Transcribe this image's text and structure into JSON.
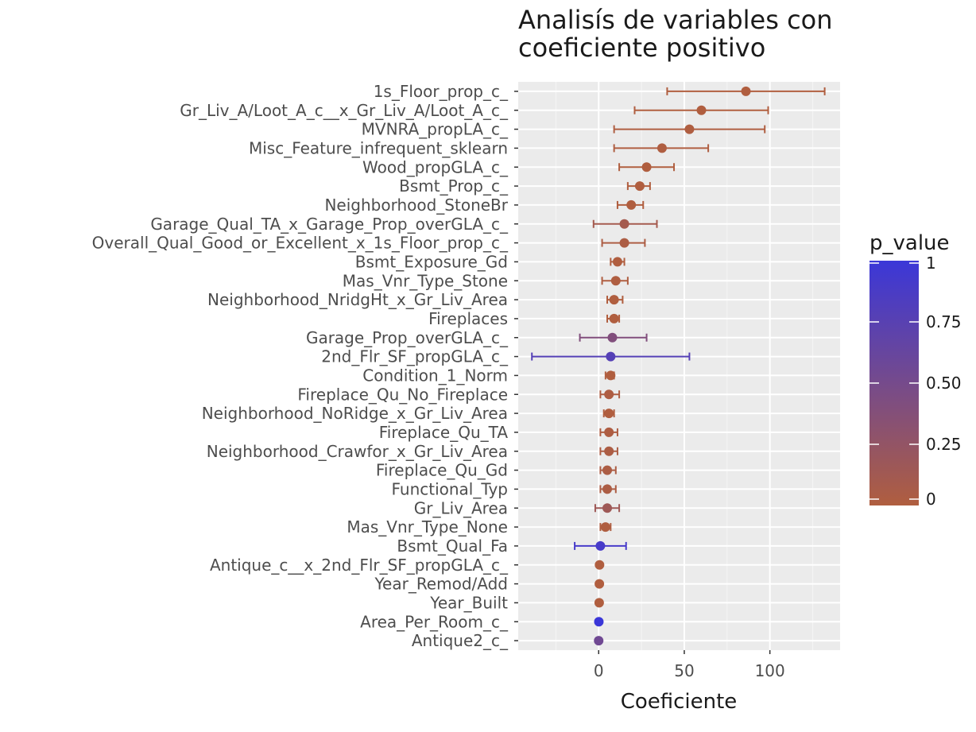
{
  "chart_data": {
    "type": "forest",
    "title": [
      "Analisís de variables con",
      "coeficiente positivo"
    ],
    "xlabel": "Coeficiente",
    "ylabel": "",
    "xlim": [
      -47,
      141
    ],
    "xticks": [
      0,
      50,
      100
    ],
    "grid": true,
    "legend": {
      "title": "p_value",
      "position": "right",
      "range": [
        0,
        1
      ],
      "ticks": [
        0,
        0.25,
        0.5,
        0.75,
        1
      ],
      "tick_labels": [
        "0",
        "0.25",
        "0.50",
        "0.75",
        "1"
      ],
      "low_color": "#b05e3f",
      "high_color": "#3b37d8"
    },
    "points": [
      {
        "label": "1s_Floor_prop_c_",
        "coef": 86,
        "low": 40,
        "high": 132,
        "p_value": 0.0
      },
      {
        "label": "Gr_Liv_A/Loot_A_c__x_Gr_Liv_A/Loot_A_c_",
        "coef": 60,
        "low": 21,
        "high": 99,
        "p_value": 0.0
      },
      {
        "label": "MVNRA_propLA_c_",
        "coef": 53,
        "low": 9,
        "high": 97,
        "p_value": 0.01
      },
      {
        "label": "Misc_Feature_infrequent_sklearn",
        "coef": 37,
        "low": 9,
        "high": 64,
        "p_value": 0.01
      },
      {
        "label": "Wood_propGLA_c_",
        "coef": 28,
        "low": 12,
        "high": 44,
        "p_value": 0.0
      },
      {
        "label": "Bsmt_Prop_c_",
        "coef": 24,
        "low": 17,
        "high": 30,
        "p_value": 0.0
      },
      {
        "label": "Neighborhood_StoneBr",
        "coef": 19,
        "low": 11,
        "high": 26,
        "p_value": 0.0
      },
      {
        "label": "Garage_Qual_TA_x_Garage_Prop_overGLA_c_",
        "coef": 15,
        "low": -3,
        "high": 34,
        "p_value": 0.1
      },
      {
        "label": "Overall_Qual_Good_or_Excellent_x_1s_Floor_prop_c_",
        "coef": 15,
        "low": 2,
        "high": 27,
        "p_value": 0.03
      },
      {
        "label": "Bsmt_Exposure_Gd",
        "coef": 11,
        "low": 7,
        "high": 15,
        "p_value": 0.0
      },
      {
        "label": "Mas_Vnr_Type_Stone",
        "coef": 10,
        "low": 2,
        "high": 17,
        "p_value": 0.01
      },
      {
        "label": "Neighborhood_NridgHt_x_Gr_Liv_Area",
        "coef": 9,
        "low": 5,
        "high": 14,
        "p_value": 0.0
      },
      {
        "label": "Fireplaces",
        "coef": 9,
        "low": 5,
        "high": 12,
        "p_value": 0.0
      },
      {
        "label": "Garage_Prop_overGLA_c_",
        "coef": 8,
        "low": -11,
        "high": 28,
        "p_value": 0.4
      },
      {
        "label": "2nd_Flr_SF_propGLA_c_",
        "coef": 7,
        "low": -39,
        "high": 53,
        "p_value": 0.78
      },
      {
        "label": "Condition_1_Norm",
        "coef": 7,
        "low": 4,
        "high": 9,
        "p_value": 0.0
      },
      {
        "label": "Fireplace_Qu_No_Fireplace",
        "coef": 6,
        "low": 1,
        "high": 12,
        "p_value": 0.02
      },
      {
        "label": "Neighborhood_NoRidge_x_Gr_Liv_Area",
        "coef": 6,
        "low": 3,
        "high": 9,
        "p_value": 0.0
      },
      {
        "label": "Fireplace_Qu_TA",
        "coef": 6,
        "low": 1,
        "high": 11,
        "p_value": 0.02
      },
      {
        "label": "Neighborhood_Crawfor_x_Gr_Liv_Area",
        "coef": 6,
        "low": 1,
        "high": 11,
        "p_value": 0.03
      },
      {
        "label": "Fireplace_Qu_Gd",
        "coef": 5,
        "low": 1,
        "high": 10,
        "p_value": 0.03
      },
      {
        "label": "Functional_Typ",
        "coef": 5,
        "low": 1,
        "high": 10,
        "p_value": 0.03
      },
      {
        "label": "Gr_Liv_Area",
        "coef": 5,
        "low": -2,
        "high": 12,
        "p_value": 0.15
      },
      {
        "label": "Mas_Vnr_Type_None",
        "coef": 4,
        "low": 1,
        "high": 7,
        "p_value": 0.01
      },
      {
        "label": "Bsmt_Qual_Fa",
        "coef": 1,
        "low": -14,
        "high": 16,
        "p_value": 0.9
      },
      {
        "label": "Antique_c__x_2nd_Flr_SF_propGLA_c_",
        "coef": 0.5,
        "low": 0.2,
        "high": 0.8,
        "p_value": 0.0
      },
      {
        "label": "Year_Remod/Add",
        "coef": 0.4,
        "low": 0.3,
        "high": 0.5,
        "p_value": 0.0
      },
      {
        "label": "Year_Built",
        "coef": 0.3,
        "low": 0.2,
        "high": 0.4,
        "p_value": 0.0
      },
      {
        "label": "Area_Per_Room_c_",
        "coef": 0.1,
        "low": 0.0,
        "high": 0.2,
        "p_value": 1.0
      },
      {
        "label": "Antique2_c_",
        "coef": 0.0,
        "low": -0.1,
        "high": 0.1,
        "p_value": 0.55
      }
    ]
  }
}
